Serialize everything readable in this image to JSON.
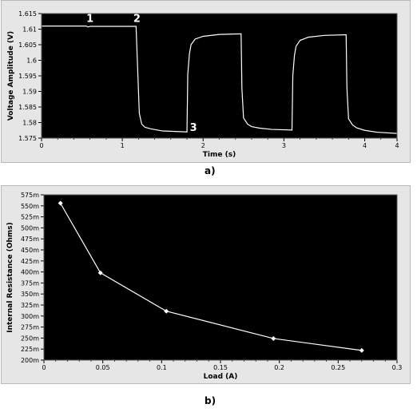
{
  "panel_a_caption": "a)",
  "panel_b_caption": "b)",
  "chart_data": [
    {
      "type": "line",
      "xlabel": "Time (s)",
      "ylabel": "Voltage Amplitude (V)",
      "xlim": [
        0,
        4.4
      ],
      "ylim": [
        1.575,
        1.615
      ],
      "xticks": [
        "0",
        "1",
        "2",
        "3",
        "4",
        "4"
      ],
      "xtick_values": [
        0,
        1,
        2,
        3,
        4,
        4.4
      ],
      "yticks": [
        "1.615",
        "1.61",
        "1.605",
        "1.6",
        "1.595",
        "1.59",
        "1.585",
        "1.58",
        "1.575"
      ],
      "ytick_values": [
        1.615,
        1.61,
        1.605,
        1.6,
        1.595,
        1.59,
        1.585,
        1.58,
        1.575
      ],
      "background": "#000000",
      "line_color": "#ffffff",
      "annotations": [
        {
          "text": "1",
          "x": 0.6,
          "y": 1.6115
        },
        {
          "text": "2",
          "x": 1.18,
          "y": 1.6115
        },
        {
          "text": "3",
          "x": 1.88,
          "y": 1.5765
        }
      ],
      "series": [
        {
          "x": [
            0,
            0.55,
            0.58,
            0.6,
            1.17,
            1.19,
            1.21,
            1.24,
            1.28,
            1.35,
            1.5,
            1.8,
            1.81,
            1.83,
            1.85,
            1.9,
            2.0,
            2.2,
            2.47,
            2.48,
            2.5,
            2.55,
            2.6,
            2.7,
            2.85,
            3.1,
            3.11,
            3.13,
            3.15,
            3.2,
            3.3,
            3.5,
            3.77,
            3.78,
            3.8,
            3.85,
            3.9,
            4.0,
            4.15,
            4.4
          ],
          "y": [
            1.611,
            1.611,
            1.6107,
            1.6109,
            1.6109,
            1.597,
            1.583,
            1.5795,
            1.5785,
            1.578,
            1.5773,
            1.577,
            1.5955,
            1.602,
            1.605,
            1.6068,
            1.6077,
            1.6083,
            1.6085,
            1.591,
            1.5815,
            1.5795,
            1.5787,
            1.5782,
            1.5778,
            1.5776,
            1.595,
            1.6015,
            1.6045,
            1.6064,
            1.6074,
            1.608,
            1.6082,
            1.591,
            1.5812,
            1.5792,
            1.5783,
            1.5775,
            1.5769,
            1.5765
          ]
        }
      ]
    },
    {
      "type": "line",
      "xlabel": "Load (A)",
      "ylabel": "Internal Resistance (Ohms)",
      "xlim": [
        0,
        0.3
      ],
      "ylim": [
        0.2,
        0.575
      ],
      "xticks": [
        "0",
        "0.05",
        "0.1",
        "0.15",
        "0.2",
        "0.25",
        "0.3"
      ],
      "xtick_values": [
        0,
        0.05,
        0.1,
        0.15,
        0.2,
        0.25,
        0.3
      ],
      "yticks": [
        "575m",
        "550m",
        "525m",
        "500m",
        "475m",
        "450m",
        "425m",
        "400m",
        "375m",
        "350m",
        "325m",
        "300m",
        "275m",
        "250m",
        "225m",
        "200m"
      ],
      "ytick_values": [
        0.575,
        0.55,
        0.525,
        0.5,
        0.475,
        0.45,
        0.425,
        0.4,
        0.375,
        0.35,
        0.325,
        0.3,
        0.275,
        0.25,
        0.225,
        0.2
      ],
      "background": "#000000",
      "line_color": "#ffffff",
      "series": [
        {
          "x": [
            0.014,
            0.048,
            0.104,
            0.195,
            0.27
          ],
          "y": [
            0.556,
            0.398,
            0.311,
            0.249,
            0.222
          ]
        }
      ]
    }
  ]
}
